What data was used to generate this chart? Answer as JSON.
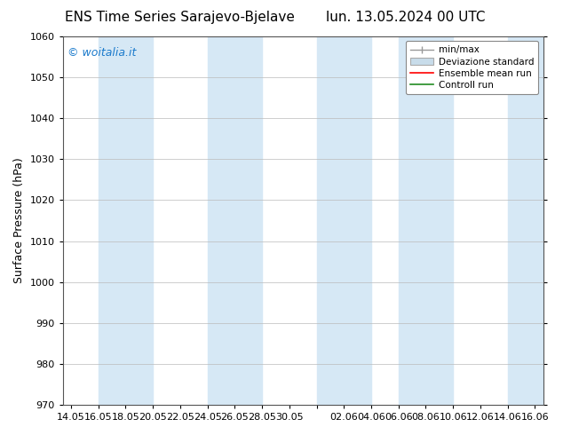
{
  "title_left": "ENS Time Series Sarajevo-Bjelave",
  "title_right": "lun. 13.05.2024 00 UTC",
  "ylabel": "Surface Pressure (hPa)",
  "ylim": [
    970,
    1060
  ],
  "yticks": [
    970,
    980,
    990,
    1000,
    1010,
    1020,
    1030,
    1040,
    1050,
    1060
  ],
  "xtick_labels": [
    "14.05",
    "16.05",
    "18.05",
    "20.05",
    "22.05",
    "24.05",
    "26.05",
    "28.05",
    "30.05",
    "",
    "02.06",
    "04.06",
    "06.06",
    "08.06",
    "10.06",
    "12.06",
    "14.06",
    "16.06"
  ],
  "background_color": "#ffffff",
  "plot_bg_color": "#ffffff",
  "shaded_band_color": "#d6e8f5",
  "watermark_text": "© woitalia.it",
  "watermark_color": "#1a7acc",
  "title_fontsize": 11,
  "axis_label_fontsize": 9,
  "tick_fontsize": 8,
  "legend_fontsize": 7.5
}
